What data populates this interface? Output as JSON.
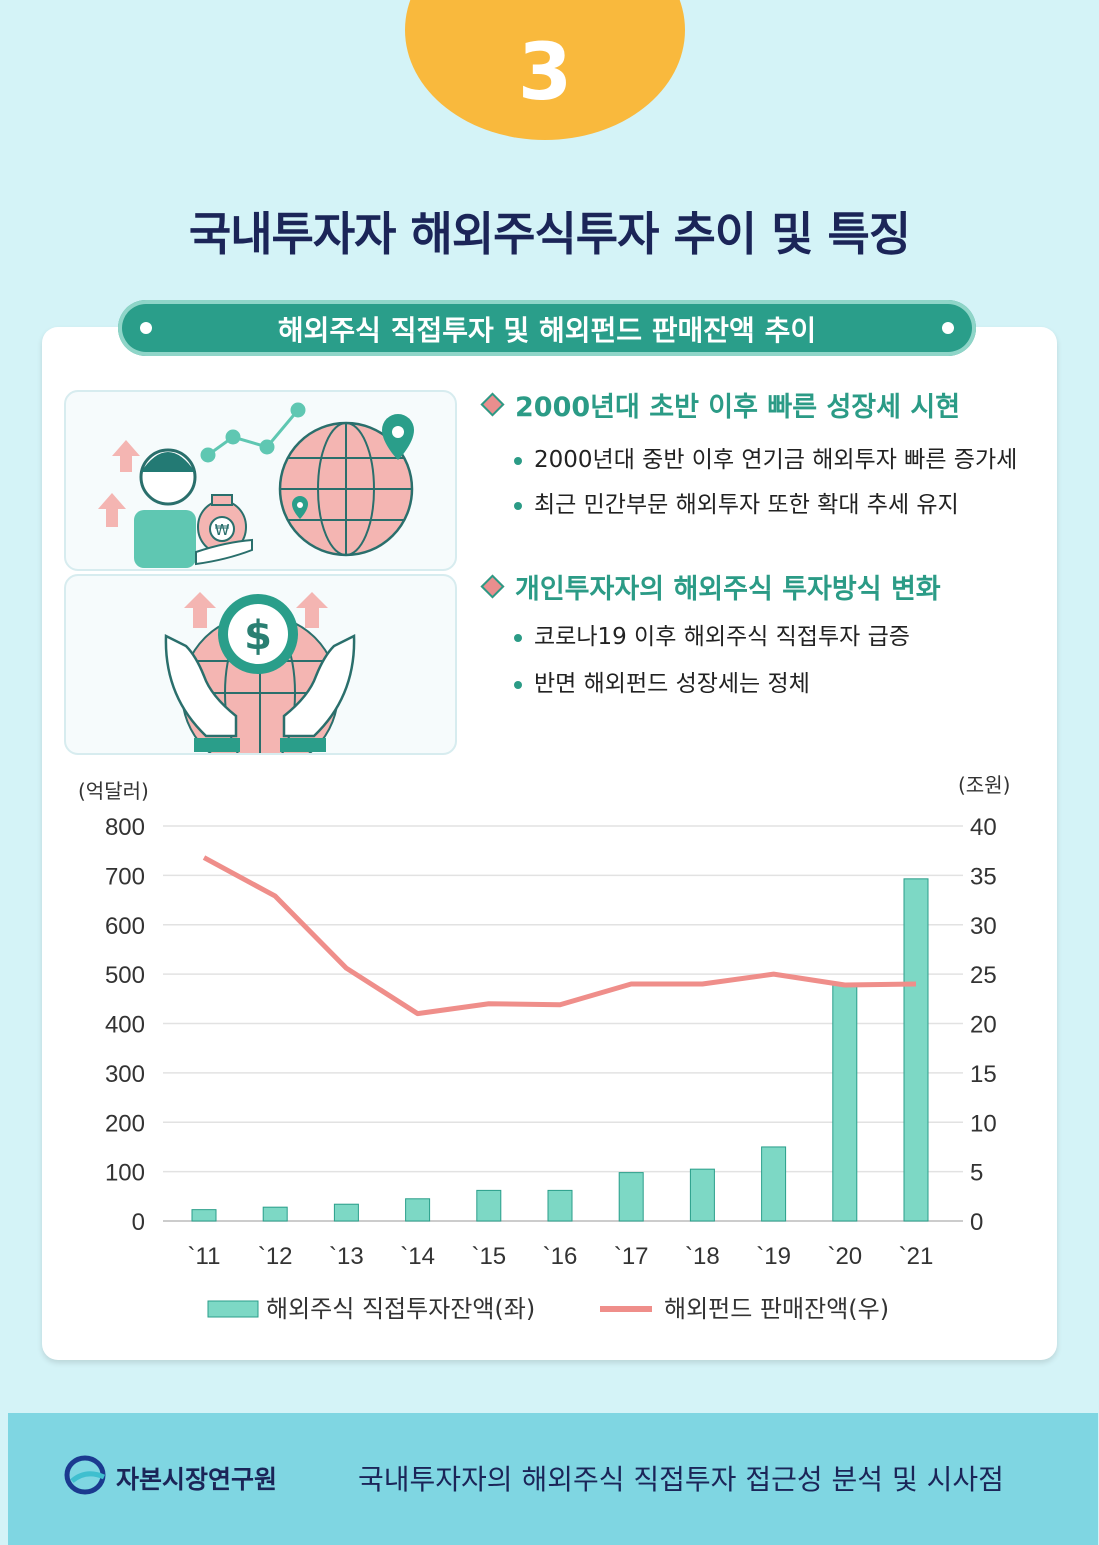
{
  "badge": {
    "number": "3"
  },
  "title": "국내투자자 해외주식투자 추이 및 특징",
  "ribbon": {
    "text": "해외주식 직접투자 및 해외펀드 판매잔액 추이"
  },
  "sections": [
    {
      "heading": "2000년대 초반 이후 빠른 성장세 시현",
      "bullets": [
        "2000년대 중반 이후 연기금 해외투자 빠른 증가세",
        "최근 민간부문 해외투자 또한 확대 추세 유지"
      ]
    },
    {
      "heading": "개인투자자의 해외주식 투자방식 변화",
      "bullets": [
        "코로나19 이후 해외주식 직접투자 급증",
        "반면 해외펀드 성장세는 정체"
      ]
    }
  ],
  "icons": {
    "currency_symbol": "₩",
    "dollar_symbol": "$"
  },
  "chart_data": {
    "type": "bar",
    "categories": [
      "`11",
      "`12",
      "`13",
      "`14",
      "`15",
      "`16",
      "`17",
      "`18",
      "`19",
      "`20",
      "`21"
    ],
    "left_unit": "(억달러)",
    "right_unit": "(조원)",
    "y_left_ticks": [
      0,
      100,
      200,
      300,
      400,
      500,
      600,
      700,
      800
    ],
    "y_right_ticks": [
      0,
      5,
      10,
      15,
      20,
      25,
      30,
      35,
      40
    ],
    "ylim_left": [
      0,
      800
    ],
    "ylim_right": [
      0,
      40
    ],
    "grid": true,
    "legend_position": "bottom",
    "series": [
      {
        "name": "해외주식 직접투자잔액(좌)",
        "type": "bar",
        "axis": "left",
        "color": "#7dd8c5",
        "values": [
          23,
          28,
          34,
          45,
          62,
          62,
          98,
          105,
          150,
          480,
          693
        ]
      },
      {
        "name": "해외펀드 판매잔액(우)",
        "type": "line",
        "axis": "right",
        "color": "#ef8e8a",
        "values": [
          36.8,
          32.9,
          25.6,
          21.0,
          22.0,
          21.9,
          24.0,
          24.0,
          25.0,
          23.9,
          24.0
        ]
      }
    ]
  },
  "footer": {
    "logo_text": "자본시장연구원",
    "title": "국내투자자의 해외주식 직접투자 접근성 분석 및 시사점"
  }
}
